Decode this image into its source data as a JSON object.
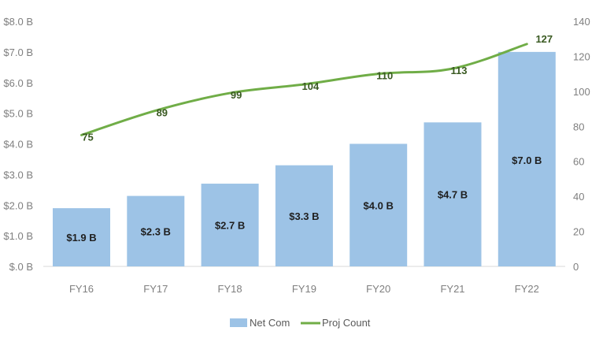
{
  "chart_data": {
    "type": "bar",
    "combo": "bar+line",
    "title": "",
    "xlabel": "",
    "ylabel": "",
    "y2label": "",
    "categories": [
      "FY16",
      "FY17",
      "FY18",
      "FY19",
      "FY20",
      "FY21",
      "FY22"
    ],
    "series": [
      {
        "name": "Net Com",
        "type": "bar",
        "axis": "left",
        "color": "#9dc3e6",
        "values": [
          1.9,
          2.3,
          2.7,
          3.3,
          4.0,
          4.7,
          7.0
        ],
        "labels": [
          "$1.9 B",
          "$2.3 B",
          "$2.7 B",
          "$3.3 B",
          "$4.0 B",
          "$4.7 B",
          "$7.0 B"
        ]
      },
      {
        "name": "Proj Count",
        "type": "line",
        "axis": "right",
        "color": "#70ad47",
        "values": [
          75,
          89,
          99,
          104,
          110,
          113,
          127
        ],
        "labels": [
          "75",
          "89",
          "99",
          "104",
          "110",
          "113",
          "127"
        ]
      }
    ],
    "ylim": [
      0,
      8
    ],
    "y2lim": [
      0,
      140
    ],
    "y_ticks": [
      "$8.0 B",
      "$7.0 B",
      "$6.0 B",
      "$5.0 B",
      "$4.0 B",
      "$3.0 B",
      "$2.0 B",
      "$1.0 B",
      "$.0 B"
    ],
    "y2_ticks": [
      "140",
      "120",
      "100",
      "80",
      "60",
      "40",
      "20",
      "0"
    ],
    "grid": false,
    "legend_position": "bottom"
  },
  "legend": {
    "items": [
      {
        "label": "Net Com"
      },
      {
        "label": "Proj Count"
      }
    ]
  }
}
